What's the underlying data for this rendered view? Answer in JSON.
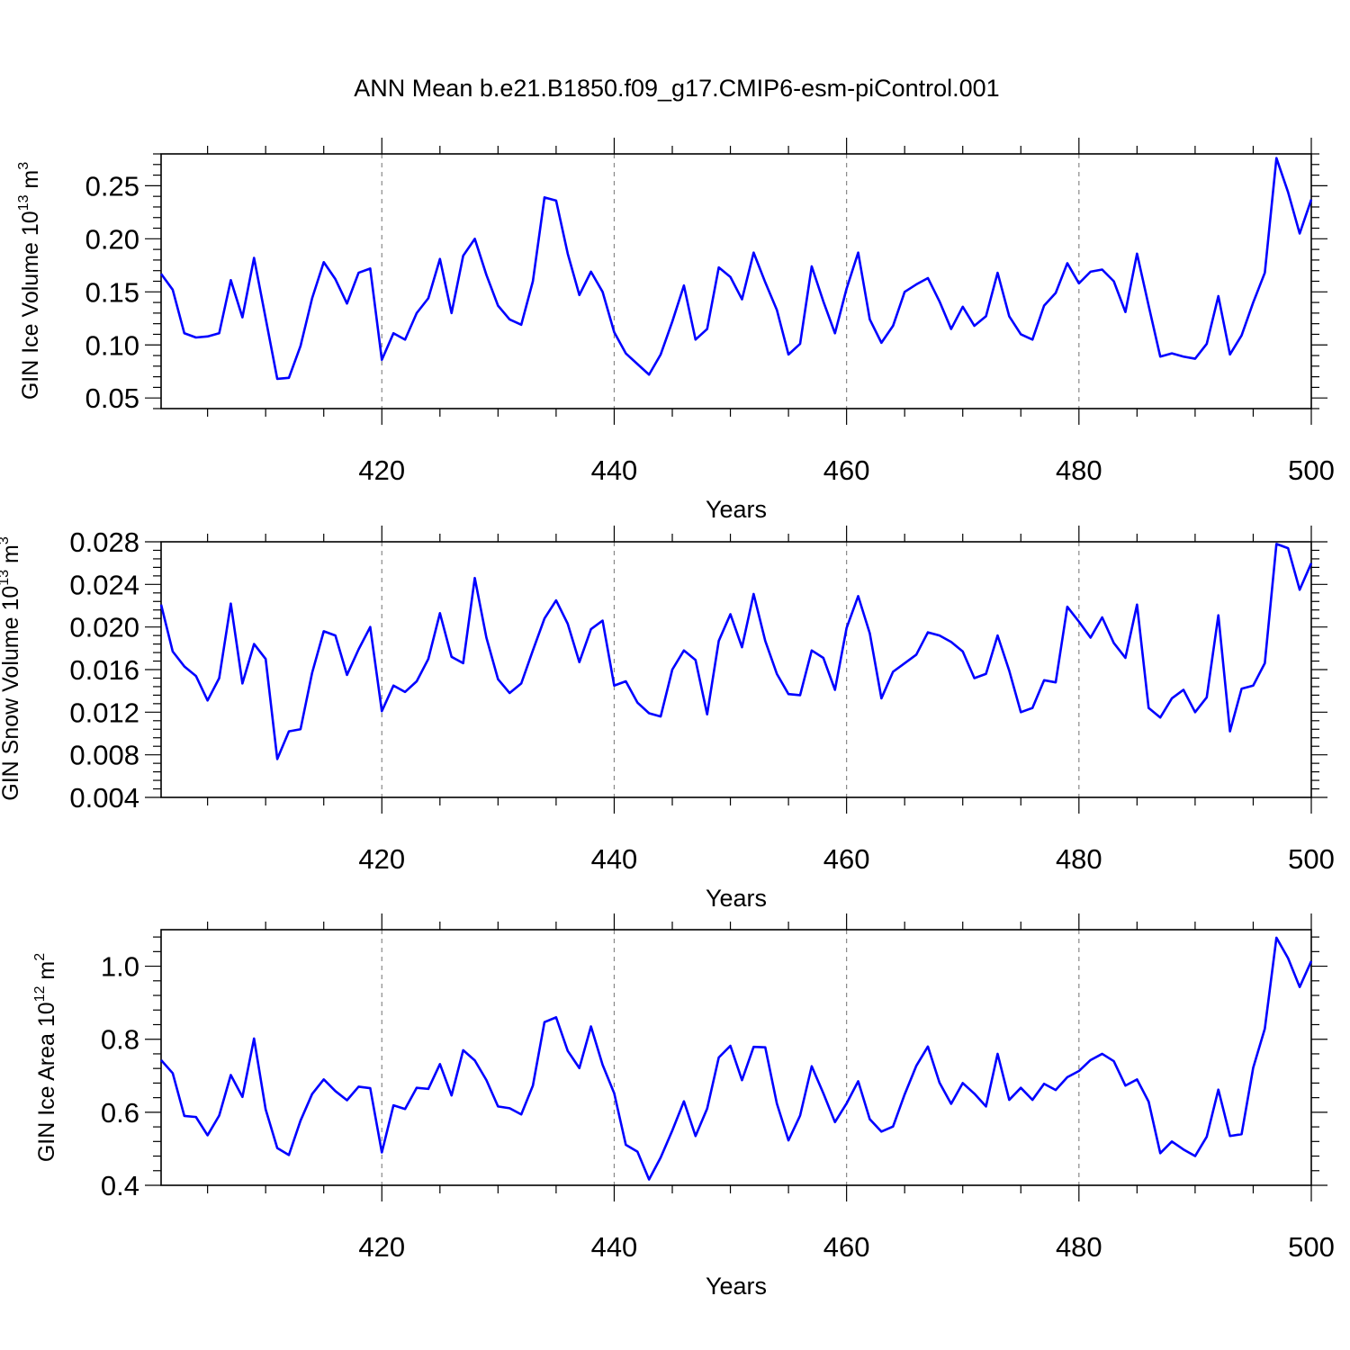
{
  "title": "ANN Mean b.e21.B1850.f09_g17.CMIP6-esm-piControl.001",
  "line_color": "#0000ff",
  "chart_data": [
    {
      "type": "line",
      "ylabel": {
        "text": "GIN Ice Volume 10",
        "sup": "13",
        "unit": " m",
        "unit_sup": "3"
      },
      "xlabel": "Years",
      "xlim": [
        401,
        500
      ],
      "ylim": [
        0.04,
        0.28
      ],
      "xticks": [
        420,
        440,
        460,
        480,
        500
      ],
      "yticks": [
        0.05,
        0.1,
        0.15,
        0.2,
        0.25
      ],
      "ytick_labels": [
        "0.05",
        "0.10",
        "0.15",
        "0.20",
        "0.25"
      ],
      "xtick_labels": [
        "420",
        "440",
        "460",
        "480",
        "500"
      ],
      "grid": "dashed vertical at major x ticks",
      "series": [
        {
          "x_start": 401,
          "values": [
            0.167,
            0.152,
            0.111,
            0.107,
            0.108,
            0.111,
            0.161,
            0.126,
            0.182,
            0.125,
            0.068,
            0.069,
            0.099,
            0.144,
            0.178,
            0.162,
            0.139,
            0.168,
            0.172,
            0.086,
            0.111,
            0.105,
            0.13,
            0.144,
            0.181,
            0.13,
            0.184,
            0.2,
            0.166,
            0.137,
            0.124,
            0.119,
            0.16,
            0.239,
            0.236,
            0.186,
            0.147,
            0.169,
            0.15,
            0.112,
            0.092,
            0.082,
            0.072,
            0.091,
            0.122,
            0.156,
            0.105,
            0.115,
            0.173,
            0.164,
            0.143,
            0.187,
            0.159,
            0.133,
            0.091,
            0.101,
            0.174,
            0.141,
            0.111,
            0.153,
            0.187,
            0.124,
            0.102,
            0.118,
            0.15,
            0.157,
            0.163,
            0.141,
            0.115,
            0.136,
            0.118,
            0.127,
            0.168,
            0.127,
            0.11,
            0.105,
            0.137,
            0.149,
            0.177,
            0.158,
            0.169,
            0.171,
            0.16,
            0.131,
            0.186,
            0.137,
            0.089,
            0.092,
            0.089,
            0.087,
            0.101,
            0.146,
            0.091,
            0.109,
            0.14,
            0.168,
            0.276,
            0.244,
            0.205,
            0.237
          ]
        }
      ]
    },
    {
      "type": "line",
      "ylabel": {
        "text": "GIN Snow Volume 10",
        "sup": "13",
        "unit": " m",
        "unit_sup": "3"
      },
      "xlabel": "Years",
      "xlim": [
        401,
        500
      ],
      "ylim": [
        0.004,
        0.028
      ],
      "xticks": [
        420,
        440,
        460,
        480,
        500
      ],
      "yticks": [
        0.004,
        0.008,
        0.012,
        0.016,
        0.02,
        0.024,
        0.028
      ],
      "ytick_labels": [
        "0.004",
        "0.008",
        "0.012",
        "0.016",
        "0.020",
        "0.024",
        "0.028"
      ],
      "xtick_labels": [
        "420",
        "440",
        "460",
        "480",
        "500"
      ],
      "grid": "dashed vertical at major x ticks",
      "series": [
        {
          "x_start": 401,
          "values": [
            0.0221,
            0.0177,
            0.0163,
            0.0154,
            0.0131,
            0.0152,
            0.0222,
            0.0147,
            0.0184,
            0.017,
            0.0076,
            0.0102,
            0.0104,
            0.0157,
            0.0196,
            0.0192,
            0.0155,
            0.0179,
            0.02,
            0.0121,
            0.0145,
            0.0139,
            0.0149,
            0.017,
            0.0213,
            0.0172,
            0.0166,
            0.0246,
            0.019,
            0.0151,
            0.0138,
            0.0147,
            0.0178,
            0.0208,
            0.0225,
            0.0203,
            0.0167,
            0.0198,
            0.0206,
            0.0145,
            0.0149,
            0.0129,
            0.0119,
            0.0116,
            0.016,
            0.0178,
            0.0169,
            0.0118,
            0.0187,
            0.0212,
            0.0181,
            0.0231,
            0.0187,
            0.0156,
            0.0137,
            0.0136,
            0.0178,
            0.0171,
            0.0141,
            0.0199,
            0.0229,
            0.0194,
            0.0133,
            0.0158,
            0.0166,
            0.0174,
            0.0195,
            0.0192,
            0.0186,
            0.0177,
            0.0152,
            0.0156,
            0.0192,
            0.0159,
            0.012,
            0.0124,
            0.015,
            0.0148,
            0.0219,
            0.0205,
            0.019,
            0.0209,
            0.0185,
            0.0171,
            0.0221,
            0.0124,
            0.0115,
            0.0133,
            0.0141,
            0.012,
            0.0134,
            0.0211,
            0.0102,
            0.0142,
            0.0145,
            0.0166,
            0.0278,
            0.0274,
            0.0235,
            0.026
          ]
        }
      ]
    },
    {
      "type": "line",
      "ylabel": {
        "text": "GIN Ice Area 10",
        "sup": "12",
        "unit": " m",
        "unit_sup": "2"
      },
      "xlabel": "Years",
      "xlim": [
        401,
        500
      ],
      "ylim": [
        0.4,
        1.1
      ],
      "xticks": [
        420,
        440,
        460,
        480,
        500
      ],
      "yticks": [
        0.4,
        0.6,
        0.8,
        1.0
      ],
      "ytick_labels": [
        "0.4",
        "0.6",
        "0.8",
        "1.0"
      ],
      "xtick_labels": [
        "420",
        "440",
        "460",
        "480",
        "500"
      ],
      "grid": "dashed vertical at major x ticks",
      "series": [
        {
          "x_start": 401,
          "values": [
            0.743,
            0.707,
            0.59,
            0.587,
            0.537,
            0.591,
            0.702,
            0.642,
            0.802,
            0.608,
            0.502,
            0.483,
            0.577,
            0.65,
            0.69,
            0.658,
            0.633,
            0.67,
            0.666,
            0.49,
            0.619,
            0.609,
            0.667,
            0.664,
            0.732,
            0.646,
            0.77,
            0.742,
            0.688,
            0.616,
            0.611,
            0.594,
            0.673,
            0.847,
            0.86,
            0.768,
            0.721,
            0.835,
            0.73,
            0.652,
            0.511,
            0.492,
            0.416,
            0.476,
            0.55,
            0.63,
            0.535,
            0.61,
            0.75,
            0.782,
            0.688,
            0.779,
            0.778,
            0.624,
            0.523,
            0.591,
            0.726,
            0.652,
            0.573,
            0.624,
            0.685,
            0.581,
            0.547,
            0.561,
            0.649,
            0.727,
            0.78,
            0.681,
            0.623,
            0.68,
            0.651,
            0.616,
            0.76,
            0.634,
            0.667,
            0.634,
            0.678,
            0.661,
            0.696,
            0.713,
            0.743,
            0.76,
            0.74,
            0.673,
            0.69,
            0.629,
            0.488,
            0.52,
            0.498,
            0.48,
            0.533,
            0.662,
            0.535,
            0.54,
            0.722,
            0.829,
            1.078,
            1.022,
            0.943,
            1.014
          ]
        }
      ]
    }
  ]
}
